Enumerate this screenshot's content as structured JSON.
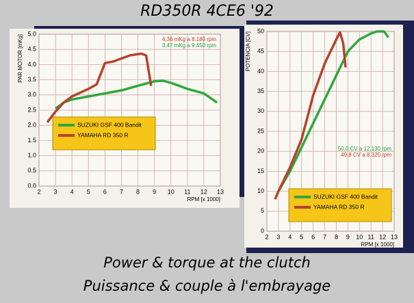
{
  "heading": "RD350R 4CE6  '92",
  "caption": [
    "Power & torque at the clutch",
    "Puissance & couple à l'embrayage"
  ],
  "chart_data": [
    {
      "type": "line",
      "y_label": "PAR MOTOR [mKg]",
      "x_label": "RPM [x 1000]",
      "xlim": [
        2,
        13
      ],
      "xticks": [
        2,
        3,
        4,
        5,
        6,
        7,
        8,
        9,
        10,
        11,
        12,
        13
      ],
      "ylim": [
        0,
        5
      ],
      "yticks": [
        {
          "value": 0,
          "label": "0.0"
        },
        0.5,
        {
          "value": 1,
          "label": "1.0"
        },
        1.5,
        {
          "value": 2,
          "label": "2.0"
        },
        2.5,
        {
          "value": 3,
          "label": "3.0"
        },
        3.5,
        {
          "value": 4,
          "label": "4.0"
        },
        4.5,
        {
          "value": 5,
          "label": "5.0"
        }
      ],
      "grid": true,
      "legend": "center left",
      "annotations": [
        {
          "text": "4,36 mKg a 8.180 rpm",
          "color": "#c0392b"
        },
        {
          "text": "3,47 mKg a 9.450 rpm",
          "color": "#1e9a3a"
        }
      ],
      "series": [
        {
          "name": "SUZUKI GSF 400 Bandit",
          "color": "#2fa83c",
          "x": [
            3,
            3.5,
            4,
            5,
            6,
            7,
            8,
            9,
            9.5,
            10,
            11,
            12,
            12.8
          ],
          "values": [
            2.55,
            2.75,
            2.85,
            2.95,
            3.05,
            3.15,
            3.3,
            3.45,
            3.47,
            3.4,
            3.2,
            3.05,
            2.75
          ]
        },
        {
          "name": "YAMAHA RD 350 R",
          "color": "#b5432f",
          "x": [
            2.5,
            3,
            3.5,
            4,
            5,
            5.5,
            6,
            6.5,
            7,
            7.5,
            8.2,
            8.5,
            8.8
          ],
          "values": [
            2.1,
            2.45,
            2.75,
            2.95,
            3.2,
            3.35,
            4.05,
            4.1,
            4.2,
            4.3,
            4.36,
            4.3,
            3.3
          ]
        }
      ]
    },
    {
      "type": "line",
      "y_label": "POTENCIA [CV]",
      "x_label": "RPM [x 1000]",
      "xlim": [
        2,
        13
      ],
      "xticks": [
        2,
        3,
        4,
        5,
        6,
        7,
        8,
        9,
        10,
        11,
        12,
        13
      ],
      "ylim": [
        0,
        50
      ],
      "yticks": [
        0,
        5,
        10,
        15,
        20,
        25,
        30,
        35,
        40,
        45,
        50
      ],
      "grid": true,
      "legend": "lower right",
      "annotations": [
        {
          "text": "50,0 CV a 12.130 rpm",
          "color": "#1e9a3a"
        },
        {
          "text": "49,8 CV a 8.320 rpm",
          "color": "#c0392b"
        }
      ],
      "series": [
        {
          "name": "SUZUKI GSF 400 Bandit",
          "color": "#2fa83c",
          "x": [
            3,
            4,
            5,
            6,
            7,
            8,
            9,
            10,
            11,
            11.5,
            12.13,
            12.5
          ],
          "values": [
            10,
            15,
            21,
            27,
            33,
            39,
            45,
            48,
            49.5,
            50,
            50,
            48.5
          ]
        },
        {
          "name": "YAMAHA RD 350 R",
          "color": "#b5432f",
          "x": [
            2.7,
            3,
            4,
            5,
            6,
            7,
            8,
            8.32,
            8.6,
            8.8
          ],
          "values": [
            8,
            10,
            16,
            23,
            34,
            42,
            48,
            49.8,
            47,
            41
          ]
        }
      ]
    }
  ]
}
